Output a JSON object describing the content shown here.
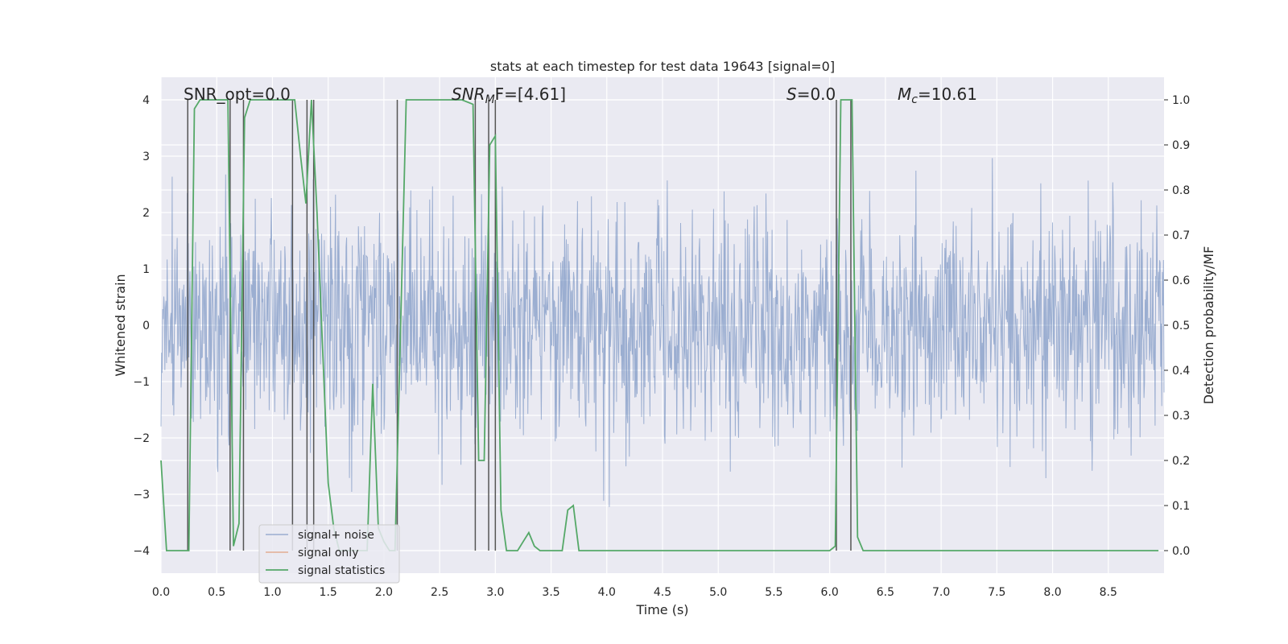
{
  "chart_data": {
    "type": "line",
    "title": "stats at each timestep for test data 19643 [signal=0]",
    "xlabel": "Time (s)",
    "ylabel": "Whitened strain",
    "ylabel_right": "Detection probability/MF",
    "xlim": [
      0.0,
      9.0
    ],
    "ylim": [
      -4.4,
      4.4
    ],
    "ylim_right": [
      -0.05,
      1.05
    ],
    "x_ticks": [
      "0.0",
      "0.5",
      "1.0",
      "1.5",
      "2.0",
      "2.5",
      "3.0",
      "3.5",
      "4.0",
      "4.5",
      "5.0",
      "5.5",
      "6.0",
      "6.5",
      "7.0",
      "7.5",
      "8.0",
      "8.5"
    ],
    "y_ticks": [
      "4",
      "3",
      "2",
      "1",
      "0",
      "−1",
      "−2",
      "−3",
      "−4"
    ],
    "y_ticks_right": [
      "1.0",
      "0.9",
      "0.8",
      "0.7",
      "0.6",
      "0.5",
      "0.4",
      "0.3",
      "0.2",
      "0.1",
      "0.0"
    ],
    "annotations": {
      "snr_opt": "SNR_opt=0.0",
      "snr_mf_main": "SNR",
      "snr_mf_sub": "M",
      "snr_mf_rest": "F=[4.61]",
      "s_sym": "S",
      "s_val": "=0.0",
      "mc_sym": "M",
      "mc_sub": "c",
      "mc_val": "=10.61"
    },
    "legend": {
      "placement": "lower-left",
      "entries": [
        "signal+ noise",
        "signal only",
        "signal statistics"
      ]
    },
    "series": [
      {
        "name": "signal+ noise",
        "color": "#4c72b0",
        "style": "dense noise, approx. range -3.6 to 4.0",
        "noise_seed": 19643,
        "n_samples": 1800
      },
      {
        "name": "signal only",
        "color": "#dd8452",
        "values": []
      },
      {
        "name": "signal statistics",
        "color": "#55a868",
        "axis": "right",
        "x": [
          0.0,
          0.05,
          0.1,
          0.15,
          0.2,
          0.25,
          0.3,
          0.35,
          0.4,
          0.45,
          0.5,
          0.55,
          0.6,
          0.65,
          0.7,
          0.75,
          0.8,
          0.85,
          0.9,
          0.95,
          1.0,
          1.05,
          1.1,
          1.15,
          1.2,
          1.25,
          1.3,
          1.35,
          1.4,
          1.45,
          1.5,
          1.55,
          1.6,
          1.65,
          1.7,
          1.75,
          1.8,
          1.85,
          1.9,
          1.95,
          2.0,
          2.05,
          2.1,
          2.15,
          2.2,
          2.25,
          2.3,
          2.4,
          2.5,
          2.6,
          2.7,
          2.8,
          2.85,
          2.9,
          2.95,
          3.0,
          3.05,
          3.1,
          3.15,
          3.2,
          3.25,
          3.3,
          3.35,
          3.4,
          3.45,
          3.5,
          3.55,
          3.6,
          3.65,
          3.7,
          3.75,
          3.8,
          3.85,
          3.9,
          4.0,
          4.5,
          5.0,
          5.5,
          6.0,
          6.05,
          6.1,
          6.15,
          6.2,
          6.25,
          6.3,
          6.35,
          6.5,
          7.0,
          7.5,
          8.0,
          8.5,
          8.95
        ],
        "values": [
          0.2,
          0.0,
          0.0,
          0.0,
          0.0,
          0.0,
          0.98,
          1.0,
          1.0,
          1.0,
          1.0,
          1.0,
          1.0,
          0.01,
          0.06,
          0.96,
          1.0,
          1.0,
          1.0,
          1.0,
          1.0,
          1.0,
          1.0,
          1.0,
          1.0,
          0.88,
          0.77,
          1.0,
          0.75,
          0.45,
          0.15,
          0.05,
          0.0,
          0.0,
          0.0,
          0.0,
          0.0,
          0.0,
          0.37,
          0.05,
          0.02,
          0.0,
          0.0,
          0.5,
          1.0,
          1.0,
          1.0,
          1.0,
          1.0,
          1.0,
          1.0,
          0.99,
          0.2,
          0.2,
          0.9,
          0.92,
          0.09,
          0.0,
          0.0,
          0.0,
          0.02,
          0.04,
          0.01,
          0.0,
          0.0,
          0.0,
          0.0,
          0.0,
          0.09,
          0.1,
          0.0,
          0.0,
          0.0,
          0.0,
          0.0,
          0.0,
          0.0,
          0.0,
          0.0,
          0.01,
          1.0,
          1.0,
          1.0,
          0.03,
          0.0,
          0.0,
          0.0,
          0.0,
          0.0,
          0.0,
          0.0,
          0.0
        ]
      }
    ],
    "event_lines_x": [
      0.24,
      0.62,
      0.74,
      1.18,
      1.31,
      1.37,
      2.12,
      2.82,
      2.94,
      3.0,
      6.06,
      6.19
    ]
  }
}
